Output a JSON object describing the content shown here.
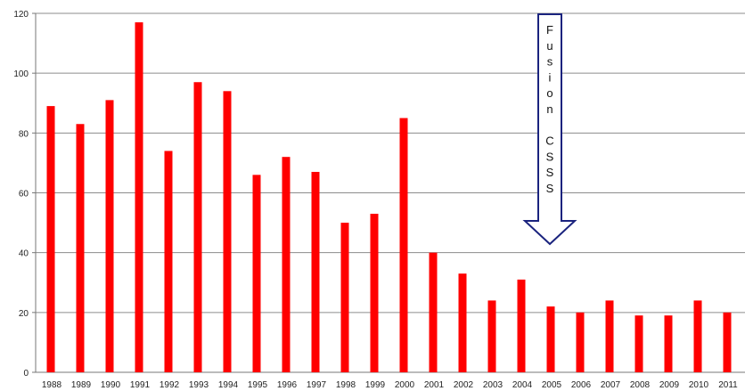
{
  "chart_data": {
    "type": "bar",
    "title": "",
    "xlabel": "",
    "ylabel": "",
    "ylim": [
      0,
      120
    ],
    "yticks": [
      0,
      20,
      40,
      60,
      80,
      100,
      120
    ],
    "grid": true,
    "categories": [
      "1988",
      "1989",
      "1990",
      "1991",
      "1992",
      "1993",
      "1994",
      "1995",
      "1996",
      "1997",
      "1998",
      "1999",
      "2000",
      "2001",
      "2002",
      "2003",
      "2004",
      "2005",
      "2006",
      "2007",
      "2008",
      "2009",
      "2010",
      "2011"
    ],
    "series": [
      {
        "color": "#ff0000",
        "values": [
          89,
          83,
          91,
          117,
          74,
          97,
          94,
          66,
          72,
          67,
          50,
          53,
          85,
          40,
          33,
          24,
          31,
          22,
          20,
          24,
          19,
          19,
          24,
          20
        ]
      }
    ],
    "annotation": {
      "lines": [
        "F",
        "u",
        "s",
        "i",
        "o",
        "n",
        "",
        "C",
        "S",
        "S",
        "S"
      ],
      "category": "2005",
      "arrow_color": "#1a237e"
    }
  }
}
